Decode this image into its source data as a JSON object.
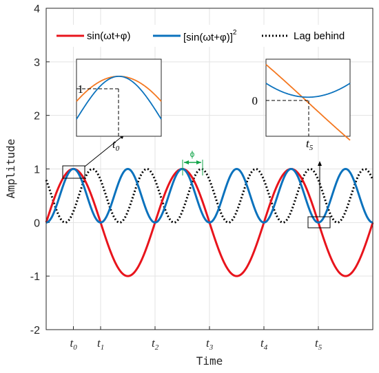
{
  "chart_data": {
    "type": "line",
    "xlabel": "Time",
    "ylabel": "Amplitude",
    "ylim": [
      -2,
      4
    ],
    "yticks": [
      "-2",
      "-1",
      "0",
      "1",
      "2",
      "3",
      "4"
    ],
    "xlim": [
      0,
      6
    ],
    "xticks": [
      {
        "base": "t",
        "sub": "0",
        "x": 0.5
      },
      {
        "base": "t",
        "sub": "1",
        "x": 1.0
      },
      {
        "base": "t",
        "sub": "2",
        "x": 2.0
      },
      {
        "base": "t",
        "sub": "3",
        "x": 3.0
      },
      {
        "base": "t",
        "sub": "4",
        "x": 4.0
      },
      {
        "base": "t",
        "sub": "5",
        "x": 5.0
      }
    ],
    "grid": true,
    "legend": "top",
    "series": [
      {
        "name": "sin(ωt+φ)",
        "color": "#e8141c",
        "style": "solid",
        "formula": "sin(2π(t)/2)",
        "period": 2.0
      },
      {
        "name_main": "[sin(ωt+φ)]",
        "name_sup": "2",
        "color": "#0b72bd",
        "style": "solid",
        "formula": "sin²",
        "period": 1.0
      },
      {
        "name": "Lag behind",
        "color": "#000000",
        "style": "dotted",
        "formula": "sin² shifted",
        "lag": 0.35
      }
    ],
    "annotations": {
      "phi": "ϕ",
      "inset_left": {
        "value_label": "1",
        "time_label_base": "t",
        "time_label_sub": "0"
      },
      "inset_right": {
        "value_label": "0",
        "time_label_base": "t",
        "time_label_sub": "5"
      }
    }
  }
}
